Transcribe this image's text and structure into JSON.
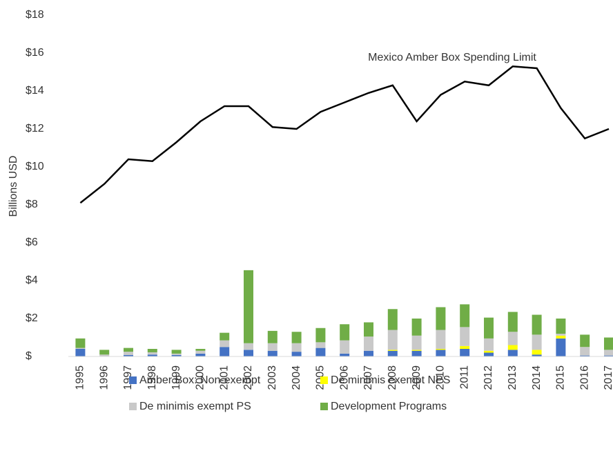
{
  "chart_data": {
    "type": "bar",
    "stacked": true,
    "y_label": "Billions USD",
    "annotation": "Mexico Amber Box Spending Limit",
    "categories": [
      "1995",
      "1996",
      "1997",
      "1998",
      "1999",
      "2000",
      "2001",
      "2002",
      "2003",
      "2004",
      "2005",
      "2006",
      "2007",
      "2008",
      "2009",
      "2010",
      "2011",
      "2012",
      "2013",
      "2014",
      "2015",
      "2016",
      "2017"
    ],
    "series": [
      {
        "name": "Amber Box: Non-exempt",
        "color": "#4472c4",
        "values": [
          0.4,
          0.02,
          0.08,
          0.1,
          0.08,
          0.15,
          0.5,
          0.35,
          0.3,
          0.25,
          0.45,
          0.15,
          0.3,
          0.3,
          0.3,
          0.35,
          0.4,
          0.2,
          0.35,
          0.1,
          0.95,
          0.05,
          0.05
        ]
      },
      {
        "name": "De minimis exempt NPS",
        "color": "#ffff00",
        "values": [
          0,
          0,
          0,
          0,
          0,
          0,
          0,
          0,
          0,
          0,
          0,
          0,
          0,
          0.05,
          0.05,
          0.05,
          0.15,
          0.1,
          0.25,
          0.25,
          0.15,
          0,
          0
        ]
      },
      {
        "name": "De minimis exempt PS",
        "color": "#c9c9c9",
        "values": [
          0.05,
          0.08,
          0.17,
          0.12,
          0.07,
          0.15,
          0.35,
          0.35,
          0.4,
          0.45,
          0.3,
          0.7,
          0.75,
          1.05,
          0.75,
          1.0,
          1.0,
          0.65,
          0.7,
          0.8,
          0.1,
          0.45,
          0.3
        ]
      },
      {
        "name": "Development Programs",
        "color": "#70ad47",
        "values": [
          0.5,
          0.25,
          0.2,
          0.18,
          0.2,
          0.1,
          0.4,
          3.85,
          0.65,
          0.6,
          0.75,
          0.85,
          0.75,
          1.1,
          0.9,
          1.2,
          1.2,
          1.1,
          1.05,
          1.05,
          0.8,
          0.65,
          0.65
        ]
      }
    ],
    "line": {
      "color": "#000000",
      "values": [
        8.1,
        9.1,
        10.4,
        10.3,
        11.3,
        12.4,
        13.2,
        13.2,
        12.1,
        12.0,
        12.9,
        13.4,
        13.9,
        14.3,
        12.4,
        13.8,
        14.5,
        14.3,
        15.3,
        15.2,
        13.1,
        11.5,
        12.0
      ]
    },
    "ylim": [
      0,
      18
    ],
    "yticks": [
      {
        "value": 0,
        "label": "$"
      },
      {
        "value": 2,
        "label": "$2"
      },
      {
        "value": 4,
        "label": "$4"
      },
      {
        "value": 6,
        "label": "$6"
      },
      {
        "value": 8,
        "label": "$8"
      },
      {
        "value": 10,
        "label": "$10"
      },
      {
        "value": 12,
        "label": "$12"
      },
      {
        "value": 14,
        "label": "$14"
      },
      {
        "value": 16,
        "label": "$16"
      },
      {
        "value": 18,
        "label": "$18"
      }
    ],
    "legend": "bottom"
  }
}
